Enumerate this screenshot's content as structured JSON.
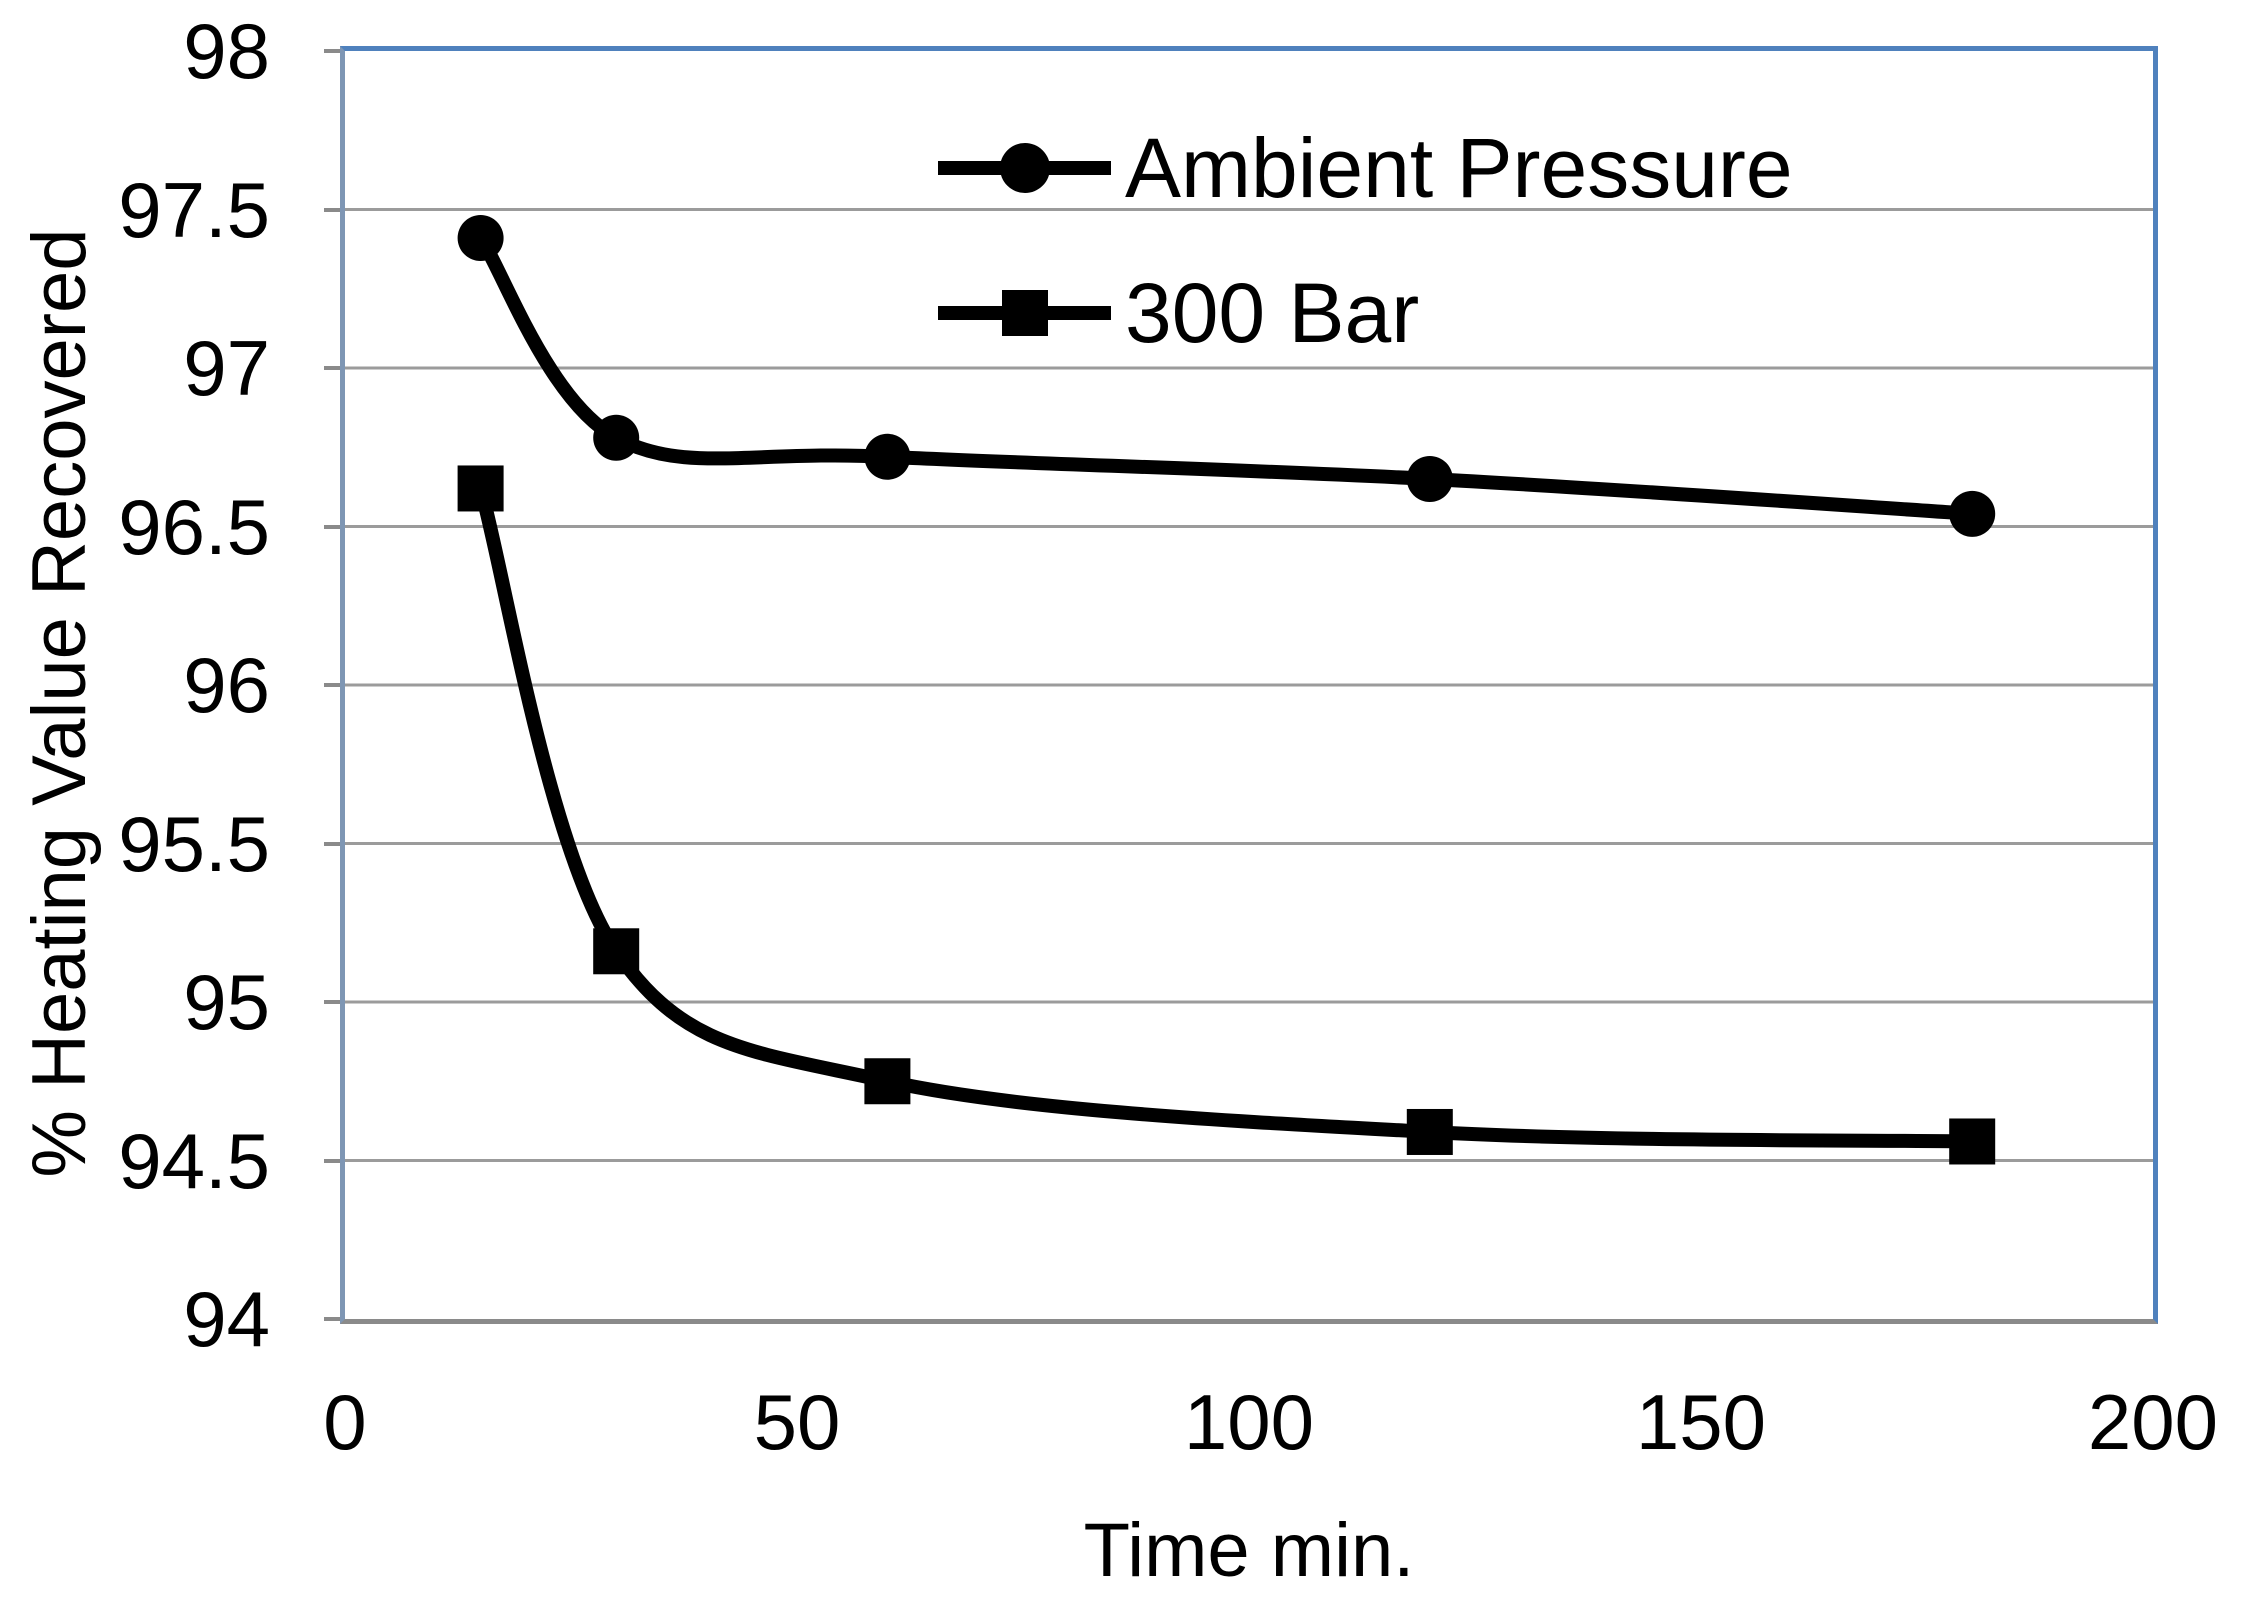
{
  "chart_data": {
    "type": "line",
    "x": [
      15,
      30,
      60,
      120,
      180
    ],
    "series": [
      {
        "name": "Ambient Pressure",
        "marker": "circle",
        "values": [
          97.41,
          96.78,
          96.72,
          96.65,
          96.54
        ]
      },
      {
        "name": "300 Bar",
        "marker": "square",
        "values": [
          96.62,
          95.16,
          94.75,
          94.59,
          94.56
        ]
      }
    ],
    "xlabel": "Time min.",
    "ylabel": "% Heating Value Recovered",
    "xlim": [
      0,
      200
    ],
    "ylim": [
      94,
      98
    ],
    "xticks": [
      0,
      50,
      100,
      150,
      200
    ],
    "yticks": [
      94,
      94.5,
      95,
      95.5,
      96,
      96.5,
      97,
      97.5,
      98
    ],
    "grid": "horizontal-only",
    "legend_position": "inside-top-center",
    "colors": {
      "series": "#000000",
      "plot_border": "#4f81bd",
      "gridline": "#9b9b9b",
      "axis": "#8a8a8a",
      "text": "#000000",
      "background": "#ffffff"
    }
  }
}
